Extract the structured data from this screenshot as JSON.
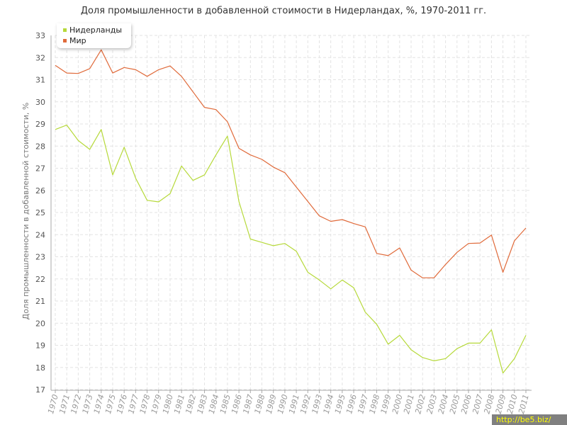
{
  "page": {
    "title": "Доля промышленности в добавленной стоимости в Нидерландах, %, 1970-2011 гг.",
    "watermark": "http://be5.biz/"
  },
  "colors": {
    "netherlands": "#b6d93a",
    "world": "#e06a3a",
    "grid": "#e3e3e3",
    "axis": "#aaaaaa",
    "tick_text": "#999999"
  },
  "legend": {
    "items": [
      {
        "label": "Нидерланды",
        "color": "#b6d93a"
      },
      {
        "label": "Мир",
        "color": "#e06a3a"
      }
    ]
  },
  "chart_data": {
    "type": "line",
    "title": "Доля промышленности в добавленной стоимости в Нидерландах, %, 1970-2011 гг.",
    "xlabel": "",
    "ylabel": "Доля промышленности в добавленной стоимости, %",
    "x": [
      "1970",
      "1971",
      "1972",
      "1973",
      "1974",
      "1975",
      "1976",
      "1977",
      "1978",
      "1979",
      "1980",
      "1981",
      "1982",
      "1983",
      "1984",
      "1985",
      "1986",
      "1987",
      "1988",
      "1989",
      "1990",
      "1991",
      "1992",
      "1993",
      "1994",
      "1995",
      "1996",
      "1997",
      "1998",
      "1999",
      "2000",
      "2001",
      "2002",
      "2003",
      "2004",
      "2005",
      "2006",
      "2007",
      "2008",
      "2009",
      "2010",
      "2011"
    ],
    "ylim": [
      17,
      33
    ],
    "yticks": [
      "17",
      "18",
      "19",
      "20",
      "21",
      "22",
      "23",
      "24",
      "25",
      "26",
      "27",
      "28",
      "29",
      "30",
      "31",
      "32",
      "33"
    ],
    "grid": true,
    "legend_position": "top-left",
    "series": [
      {
        "name": "Нидерланды",
        "color": "#b6d93a",
        "values": [
          28.75,
          28.95,
          28.25,
          27.85,
          28.75,
          26.7,
          27.95,
          26.55,
          25.55,
          25.48,
          25.85,
          27.1,
          26.45,
          26.7,
          27.6,
          28.45,
          25.5,
          23.8,
          23.65,
          23.5,
          23.6,
          23.25,
          22.3,
          21.95,
          21.55,
          21.95,
          21.6,
          20.5,
          19.95,
          19.05,
          19.45,
          18.8,
          18.45,
          18.3,
          18.4,
          18.85,
          19.1,
          19.1,
          19.7,
          17.75,
          18.4,
          19.45
        ]
      },
      {
        "name": "Мир",
        "color": "#e06a3a",
        "values": [
          31.65,
          31.3,
          31.28,
          31.5,
          32.35,
          31.3,
          31.55,
          31.45,
          31.15,
          31.45,
          31.62,
          31.15,
          30.45,
          29.75,
          29.65,
          29.1,
          27.9,
          27.6,
          27.4,
          27.05,
          26.8,
          26.15,
          25.5,
          24.85,
          24.6,
          24.68,
          24.5,
          24.35,
          23.15,
          23.05,
          23.4,
          22.4,
          22.05,
          22.05,
          22.65,
          23.2,
          23.6,
          23.62,
          23.98,
          22.3,
          23.72,
          24.3
        ]
      }
    ]
  }
}
